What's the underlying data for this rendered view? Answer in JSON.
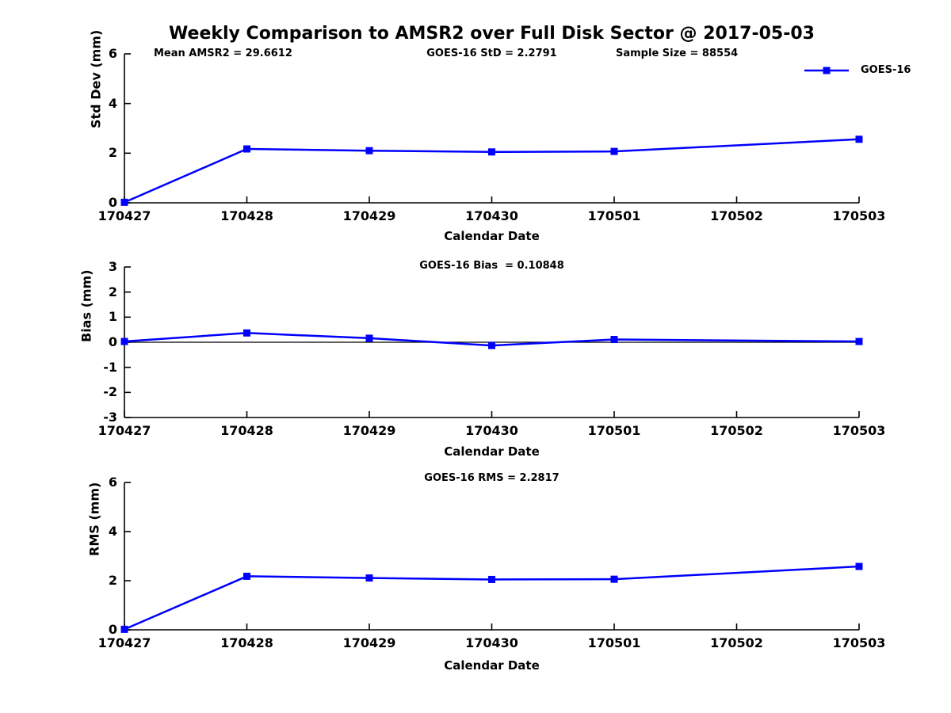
{
  "figure": {
    "title": "Weekly Comparison to AMSR2 over Full Disk Sector @ 2017-05-03",
    "background_color": "#ffffff",
    "line_color": "#0000FF",
    "axis_color": "#000000"
  },
  "legend": {
    "label": "GOES-16",
    "marker": "square",
    "color": "#0000FF"
  },
  "chart_data": [
    {
      "type": "line",
      "subplot": "std-dev",
      "title": "",
      "annotations": [
        "Mean AMSR2 = 29.6612",
        "GOES-16 StD = 2.2791",
        "Sample Size = 88554"
      ],
      "ylabel": "Std Dev (mm)",
      "xlabel": "Calendar Date",
      "xtick_labels": [
        "170427",
        "170428",
        "170429",
        "170430",
        "170501",
        "170502",
        "170503"
      ],
      "yticks": [
        0,
        2,
        4,
        6
      ],
      "ylim": [
        0,
        6
      ],
      "zero_line": false,
      "grid": false,
      "series": [
        {
          "name": "GOES-16",
          "color": "#0000FF",
          "marker": "square",
          "x": [
            "170427",
            "170428",
            "170429",
            "170430",
            "170501",
            "170503"
          ],
          "y": [
            0.02,
            2.17,
            2.1,
            2.05,
            2.07,
            2.56
          ]
        }
      ]
    },
    {
      "type": "line",
      "subplot": "bias",
      "title": "GOES-16 Bias  = 0.10848",
      "annotations": [],
      "ylabel": "Bias (mm)",
      "xlabel": "Calendar Date",
      "xtick_labels": [
        "170427",
        "170428",
        "170429",
        "170430",
        "170501",
        "170502",
        "170503"
      ],
      "yticks": [
        -3,
        -2,
        -1,
        0,
        1,
        2,
        3
      ],
      "ylim": [
        -3,
        3
      ],
      "zero_line": true,
      "grid": false,
      "series": [
        {
          "name": "GOES-16",
          "color": "#0000FF",
          "marker": "square",
          "x": [
            "170427",
            "170428",
            "170429",
            "170430",
            "170501",
            "170503"
          ],
          "y": [
            0.03,
            0.37,
            0.16,
            -0.13,
            0.11,
            0.03
          ]
        }
      ]
    },
    {
      "type": "line",
      "subplot": "rms",
      "title": "GOES-16 RMS = 2.2817",
      "annotations": [],
      "ylabel": "RMS (mm)",
      "xlabel": "Calendar Date",
      "xtick_labels": [
        "170427",
        "170428",
        "170429",
        "170430",
        "170501",
        "170502",
        "170503"
      ],
      "yticks": [
        0,
        2,
        4,
        6
      ],
      "ylim": [
        0,
        6
      ],
      "zero_line": false,
      "grid": false,
      "series": [
        {
          "name": "GOES-16",
          "color": "#0000FF",
          "marker": "square",
          "x": [
            "170427",
            "170428",
            "170429",
            "170430",
            "170501",
            "170503"
          ],
          "y": [
            0.02,
            2.18,
            2.11,
            2.05,
            2.06,
            2.58
          ]
        }
      ]
    }
  ]
}
